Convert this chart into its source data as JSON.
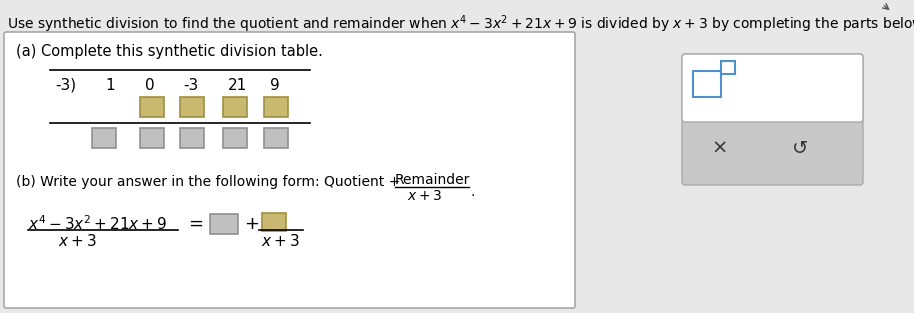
{
  "bg_color": "#e8e8e8",
  "panel_bg": "#ffffff",
  "panel_border": "#aaaaaa",
  "box_fill_tan": "#c8b870",
  "box_fill_gray": "#c0c0c0",
  "right_panel_bg": "#c8c8c8",
  "right_panel_top_bg": "#ffffff",
  "box_outline_tan": "#a09040",
  "box_outline_gray": "#909090",
  "box_blue_outline": "#5090d0",
  "synth_row0": [
    "-3)",
    "1",
    "0",
    "-3",
    "21",
    "9"
  ],
  "label_a": "(a) Complete this synthetic division table.",
  "label_b": "(b) Write your answer in the following form: Quotient +",
  "figsize": [
    9.14,
    3.13
  ],
  "dpi": 100
}
